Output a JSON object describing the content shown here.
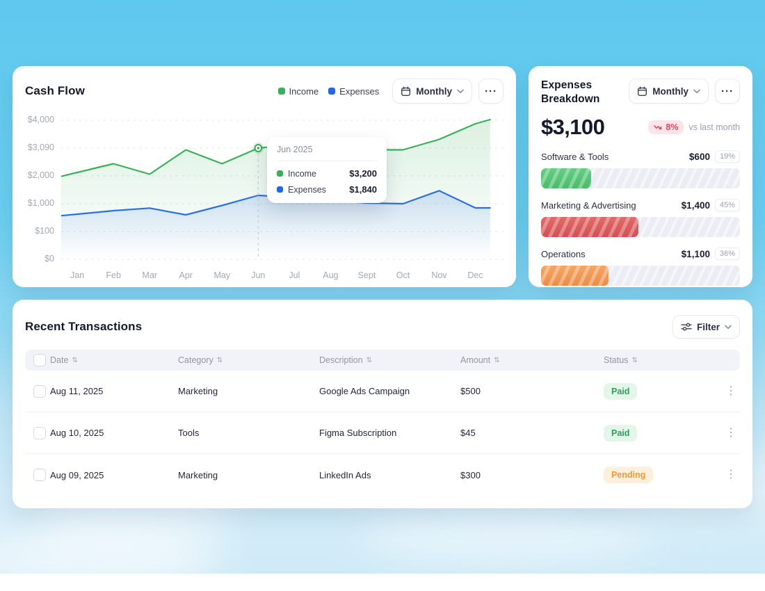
{
  "icons": {
    "more": "···",
    "sort": "⇅",
    "kebab": "⋮"
  },
  "cash_flow": {
    "title": "Cash Flow",
    "period_label": "Monthly",
    "legend": [
      {
        "label": "Income",
        "color": "#34b15a"
      },
      {
        "label": "Expenses",
        "color": "#2367e7"
      }
    ],
    "chart_data": {
      "type": "line",
      "x": [
        "Jan",
        "Feb",
        "Mar",
        "Apr",
        "May",
        "Jun",
        "Jul",
        "Aug",
        "Sept",
        "Oct",
        "Nov",
        "Dec"
      ],
      "series": [
        {
          "name": "Income",
          "color": "#3bae59",
          "values": [
            2500,
            2750,
            2450,
            3150,
            2750,
            3200,
            3300,
            3400,
            3150,
            3150,
            3450,
            3900
          ]
        },
        {
          "name": "Expenses",
          "color": "#2b6fe8",
          "values": [
            1300,
            1400,
            1475,
            1280,
            1550,
            1840,
            1780,
            1700,
            1620,
            1600,
            1975,
            1480
          ]
        }
      ],
      "y_ticks": [
        "$4,000",
        "$3,090",
        "$2,000",
        "$1,000",
        "$100",
        "$0"
      ],
      "ylim": [
        0,
        4000
      ],
      "grid": "dashed-horizontal",
      "legend_position": "top-right",
      "highlight": {
        "x": "Jun",
        "income": 3200,
        "expenses": 1840
      }
    },
    "tooltip": {
      "title": "Jun 2025",
      "rows": [
        {
          "label": "Income",
          "value": "$3,200",
          "color": "#34b15a"
        },
        {
          "label": "Expenses",
          "value": "$1,840",
          "color": "#2367e7"
        }
      ]
    }
  },
  "expenses_breakdown": {
    "title": "Expenses Breakdown",
    "period_label": "Monthly",
    "total": "$3,100",
    "change": {
      "badge": "8%",
      "direction": "down",
      "caption": "vs last month",
      "badge_bg": "#fbe5e9",
      "badge_color": "#e0445a"
    },
    "categories": [
      {
        "label": "Software & Tools",
        "amount": "$600",
        "percent": "19%",
        "bar_pct": 25,
        "c1": "#63cf83",
        "c2": "#49bb6b"
      },
      {
        "label": "Marketing & Advertising",
        "amount": "$1,400",
        "percent": "45%",
        "bar_pct": 49,
        "c1": "#e16b67",
        "c2": "#d34f55"
      },
      {
        "label": "Operations",
        "amount": "$1,100",
        "percent": "36%",
        "bar_pct": 34,
        "c1": "#f3a763",
        "c2": "#ec8c4a"
      }
    ]
  },
  "transactions": {
    "title": "Recent Transactions",
    "filter_label": "Filter",
    "columns": [
      "Date",
      "Category",
      "Description",
      "Amount",
      "Status"
    ],
    "rows": [
      {
        "date": "Aug 11, 2025",
        "category": "Marketing",
        "description": "Google Ads Campaign",
        "amount": "$500",
        "status": "Paid"
      },
      {
        "date": "Aug 10, 2025",
        "category": "Tools",
        "description": "Figma Subscription",
        "amount": "$45",
        "status": "Paid"
      },
      {
        "date": "Aug 09, 2025",
        "category": "Marketing",
        "description": "LinkedIn Ads",
        "amount": "$300",
        "status": "Pending"
      }
    ],
    "status_styles": {
      "Paid": {
        "bg": "#e4f6ea",
        "color": "#2f9e57"
      },
      "Pending": {
        "bg": "#fcf0dc",
        "color": "#e9993d"
      }
    }
  }
}
